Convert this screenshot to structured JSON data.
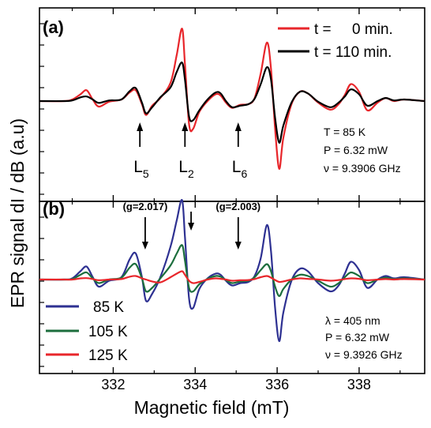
{
  "chart_data": [
    {
      "panel": "(a)",
      "type": "line",
      "xlim": [
        330.2,
        339.6
      ],
      "grid": false,
      "legend_position": "top-right",
      "series": [
        {
          "name": "t =     0 min.",
          "color": "#e8262b",
          "x": [
            330.2,
            330.8,
            331.0,
            331.2,
            331.35,
            331.5,
            331.65,
            331.9,
            332.2,
            332.4,
            332.55,
            332.7,
            332.8,
            332.95,
            333.15,
            333.4,
            333.55,
            333.68,
            333.75,
            333.85,
            333.95,
            334.1,
            334.3,
            334.5,
            334.62,
            334.75,
            334.9,
            335.1,
            335.3,
            335.45,
            335.6,
            335.75,
            335.85,
            335.95,
            336.05,
            336.15,
            336.35,
            336.55,
            336.75,
            337.0,
            337.3,
            337.5,
            337.65,
            337.8,
            338.0,
            338.2,
            338.45,
            338.65,
            338.85,
            339.1,
            339.6
          ],
          "y": [
            0.0,
            0.0,
            0.05,
            0.22,
            0.35,
            0.05,
            -0.18,
            -0.02,
            0.05,
            0.28,
            0.35,
            -0.1,
            -0.45,
            -0.15,
            0.1,
            0.6,
            1.5,
            2.35,
            1.2,
            -0.75,
            -0.9,
            -0.35,
            0.0,
            0.22,
            0.18,
            -0.05,
            -0.22,
            -0.12,
            -0.1,
            0.1,
            0.9,
            1.9,
            1.05,
            -0.9,
            -2.2,
            -1.2,
            -0.1,
            0.3,
            0.25,
            -0.05,
            -0.28,
            -0.1,
            0.2,
            0.55,
            0.3,
            -0.3,
            -0.05,
            0.1,
            0.0,
            0.05,
            0.0
          ]
        },
        {
          "name": "t = 110 min.",
          "color": "#000000",
          "x": [
            330.2,
            330.8,
            331.0,
            331.2,
            331.35,
            331.5,
            331.65,
            331.9,
            332.2,
            332.4,
            332.55,
            332.7,
            332.8,
            332.95,
            333.15,
            333.4,
            333.55,
            333.68,
            333.75,
            333.85,
            333.95,
            334.1,
            334.3,
            334.5,
            334.62,
            334.75,
            334.9,
            335.1,
            335.3,
            335.45,
            335.6,
            335.75,
            335.85,
            335.95,
            336.05,
            336.15,
            336.35,
            336.55,
            336.75,
            337.0,
            337.3,
            337.5,
            337.65,
            337.8,
            338.0,
            338.2,
            338.45,
            338.65,
            338.85,
            339.1,
            339.6
          ],
          "y": [
            0.0,
            0.0,
            0.02,
            0.12,
            0.15,
            0.05,
            -0.06,
            0.02,
            0.05,
            0.32,
            0.42,
            -0.05,
            -0.4,
            -0.2,
            0.12,
            0.45,
            0.95,
            1.25,
            0.7,
            -0.5,
            -0.62,
            -0.3,
            0.05,
            0.28,
            0.25,
            0.0,
            -0.2,
            -0.15,
            -0.1,
            0.08,
            0.55,
            1.1,
            0.7,
            -0.55,
            -1.35,
            -0.8,
            -0.05,
            0.3,
            0.25,
            -0.02,
            -0.2,
            -0.05,
            0.15,
            0.38,
            0.22,
            -0.15,
            0.0,
            0.1,
            0.02,
            0.05,
            0.0
          ]
        }
      ],
      "arrow_annotations": [
        {
          "label": "L",
          "sub": "5",
          "x": 332.65
        },
        {
          "label": "L",
          "sub": "2",
          "x": 333.75
        },
        {
          "label": "L",
          "sub": "6",
          "x": 335.05
        }
      ],
      "text_lines": [
        "T = 85 K",
        "P = 6.32 mW",
        "ν  = 9.3906 GHz"
      ]
    },
    {
      "panel": "(b)",
      "type": "line",
      "xlim": [
        330.2,
        339.6
      ],
      "grid": false,
      "legend_position": "bottom-left",
      "series": [
        {
          "name": "85 K",
          "color": "#2e3192",
          "x": [
            330.2,
            330.8,
            331.0,
            331.2,
            331.35,
            331.5,
            331.65,
            331.9,
            332.2,
            332.4,
            332.55,
            332.7,
            332.8,
            332.95,
            333.15,
            333.4,
            333.55,
            333.68,
            333.75,
            333.85,
            333.95,
            334.1,
            334.3,
            334.5,
            334.62,
            334.75,
            334.9,
            335.1,
            335.3,
            335.45,
            335.6,
            335.75,
            335.85,
            335.95,
            336.05,
            336.15,
            336.35,
            336.55,
            336.75,
            337.0,
            337.3,
            337.5,
            337.65,
            337.8,
            338.0,
            338.2,
            338.45,
            338.65,
            338.85,
            339.1,
            339.6
          ],
          "y": [
            0.0,
            0.0,
            0.05,
            0.35,
            0.55,
            0.1,
            -0.3,
            -0.05,
            0.1,
            0.85,
            1.1,
            0.1,
            -0.9,
            -0.6,
            0.1,
            1.4,
            2.5,
            3.35,
            1.8,
            -0.8,
            -1.2,
            -0.4,
            0.05,
            0.25,
            0.2,
            -0.05,
            -0.25,
            -0.15,
            -0.1,
            0.15,
            0.9,
            2.3,
            1.2,
            -1.2,
            -2.6,
            -1.4,
            -0.05,
            0.45,
            0.35,
            -0.15,
            -0.5,
            -0.25,
            0.25,
            0.75,
            0.4,
            -0.35,
            0.0,
            0.15,
            0.05,
            0.1,
            0.0
          ]
        },
        {
          "name": "105 K",
          "color": "#1c6e3d",
          "x": [
            330.2,
            330.8,
            331.0,
            331.2,
            331.35,
            331.5,
            331.65,
            331.9,
            332.2,
            332.4,
            332.55,
            332.7,
            332.8,
            332.95,
            333.15,
            333.4,
            333.55,
            333.68,
            333.75,
            333.85,
            333.95,
            334.1,
            334.3,
            334.5,
            334.62,
            334.75,
            334.9,
            335.1,
            335.3,
            335.45,
            335.6,
            335.75,
            335.85,
            335.95,
            336.05,
            336.15,
            336.35,
            336.55,
            336.75,
            337.0,
            337.3,
            337.5,
            337.65,
            337.8,
            338.0,
            338.2,
            338.45,
            338.65,
            338.85,
            339.1,
            339.6
          ],
          "y": [
            0.0,
            0.0,
            0.02,
            0.2,
            0.3,
            0.05,
            -0.15,
            0.0,
            0.08,
            0.5,
            0.65,
            0.05,
            -0.5,
            -0.35,
            0.05,
            0.6,
            1.1,
            1.45,
            0.8,
            -0.35,
            -0.5,
            -0.2,
            0.03,
            0.15,
            0.12,
            -0.02,
            -0.15,
            -0.08,
            -0.05,
            0.1,
            0.4,
            0.65,
            0.35,
            -0.3,
            -0.7,
            -0.4,
            0.0,
            0.2,
            0.15,
            -0.05,
            -0.3,
            -0.15,
            0.1,
            0.3,
            0.15,
            -0.15,
            0.0,
            0.08,
            0.02,
            0.05,
            0.0
          ]
        },
        {
          "name": "125 K",
          "color": "#e8262b",
          "x": [
            330.2,
            330.8,
            331.0,
            331.2,
            331.35,
            331.5,
            331.65,
            331.9,
            332.2,
            332.4,
            332.55,
            332.7,
            332.8,
            332.95,
            333.15,
            333.4,
            333.55,
            333.68,
            333.75,
            333.85,
            333.95,
            334.1,
            334.3,
            334.5,
            334.62,
            334.75,
            334.9,
            335.1,
            335.3,
            335.45,
            335.6,
            335.75,
            335.85,
            335.95,
            336.05,
            336.15,
            336.35,
            336.55,
            336.75,
            337.0,
            337.3,
            337.5,
            337.65,
            337.8,
            338.0,
            338.2,
            338.45,
            338.65,
            338.85,
            339.1,
            339.6
          ],
          "y": [
            0.0,
            0.0,
            0.0,
            0.05,
            0.06,
            0.02,
            -0.03,
            0.0,
            0.02,
            0.12,
            0.15,
            0.05,
            0.0,
            -0.08,
            -0.12,
            0.1,
            0.25,
            0.35,
            0.2,
            -0.05,
            -0.15,
            -0.1,
            0.0,
            0.05,
            0.03,
            0.0,
            -0.05,
            -0.03,
            -0.02,
            0.02,
            0.1,
            0.15,
            0.08,
            -0.02,
            -0.1,
            -0.08,
            0.0,
            0.05,
            0.03,
            0.0,
            -0.05,
            -0.02,
            0.02,
            0.05,
            0.03,
            -0.03,
            0.0,
            0.02,
            0.0,
            0.02,
            0.0
          ]
        }
      ],
      "arrow_annotations": [
        {
          "label": "(g=2.017)",
          "x": 332.78
        },
        {
          "label": "",
          "x": 333.9
        },
        {
          "label": "(g=2.003)",
          "x": 335.05
        }
      ],
      "text_lines": [
        "λ  = 405 nm",
        "P = 6.32 mW",
        "ν  = 9.3926 GHz"
      ]
    }
  ],
  "shared_axes": {
    "xlabel": "Magnetic field  (mT)",
    "ylabel": "EPR  signal  dI / dB  (a.u)",
    "xticks": [
      332,
      334,
      336,
      338
    ],
    "xticklabels": [
      "332",
      "334",
      "336",
      "338"
    ]
  },
  "panel_labels": {
    "a": "(a)",
    "b": "(b)"
  }
}
